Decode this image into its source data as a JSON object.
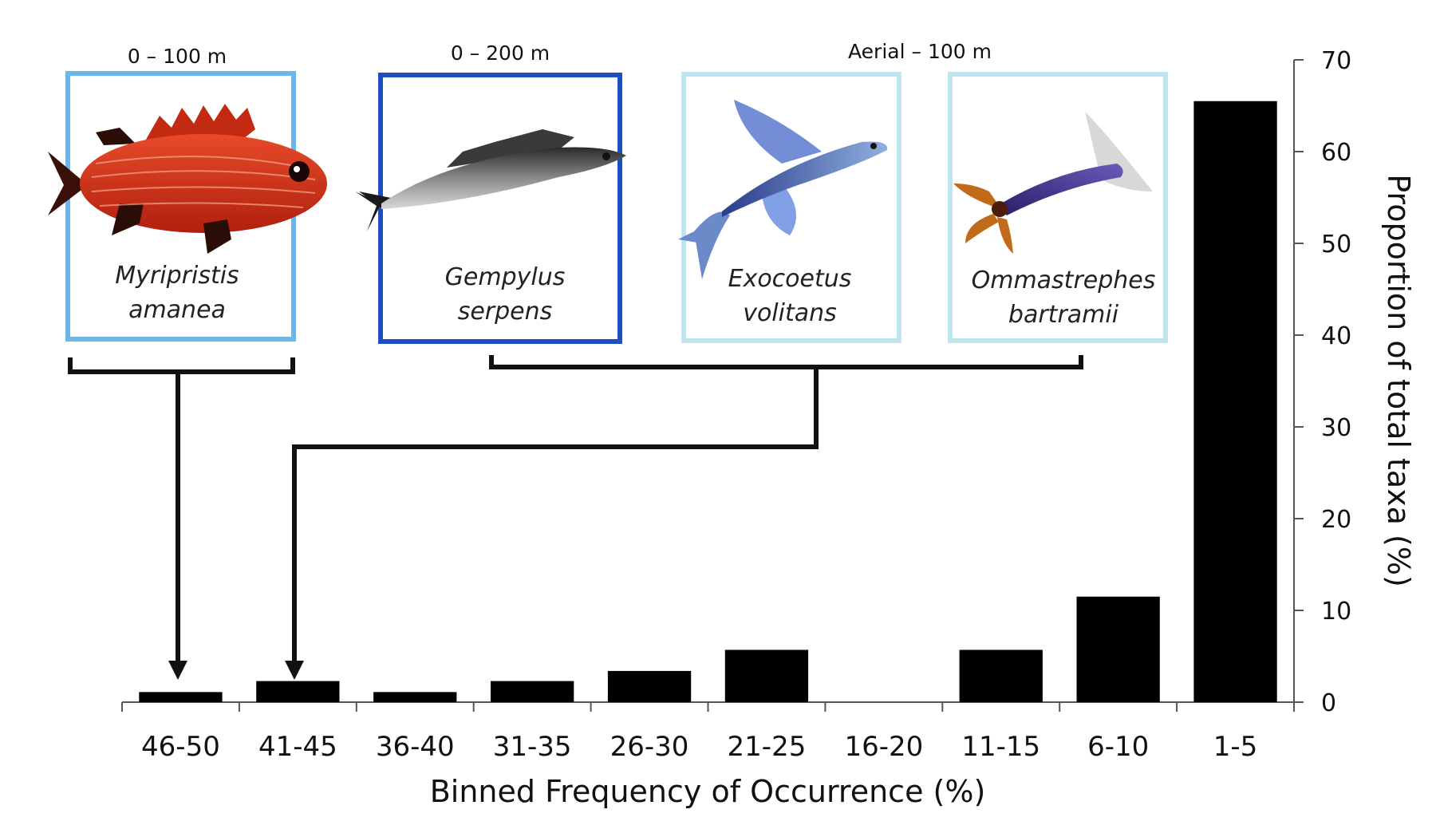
{
  "chart_data": {
    "type": "bar",
    "xlabel": "Binned Frequency of Occurrence (%)",
    "ylabel": "Proportion of total taxa (%)",
    "ylim": [
      0,
      70
    ],
    "yticks": [
      "0",
      "10",
      "20",
      "30",
      "40",
      "50",
      "60",
      "70"
    ],
    "y_axis_position": "right",
    "grid": false,
    "categories": [
      "46-50",
      "41-45",
      "36-40",
      "31-35",
      "26-30",
      "21-25",
      "16-20",
      "11-15",
      "6-10",
      "1-5"
    ],
    "values": [
      1.1,
      2.3,
      1.1,
      2.3,
      3.4,
      5.7,
      0,
      5.7,
      11.5,
      65.5
    ],
    "bar_color": "#000000"
  },
  "annotations": {
    "depth_labels": [
      "0 – 100 m",
      "0 – 200 m",
      "Aerial – 100 m"
    ],
    "species": [
      {
        "name_line1": "Myripristis",
        "name_line2": "amanea",
        "frame_color": "#6cb7ea",
        "depth": "0 – 100 m"
      },
      {
        "name_line1": "Gempylus",
        "name_line2": "serpens",
        "frame_color": "#1f4fbf",
        "depth": "0 – 200 m"
      },
      {
        "name_line1": "Exocoetus",
        "name_line2": "volitans",
        "frame_color": "#bfe6ef",
        "depth": "Aerial – 100 m"
      },
      {
        "name_line1": "Ommastrephes",
        "name_line2": "bartramii",
        "frame_color": "#bfe6ef",
        "depth": "Aerial – 100 m"
      }
    ],
    "arrow_targets": [
      "46-50",
      "41-45"
    ]
  }
}
